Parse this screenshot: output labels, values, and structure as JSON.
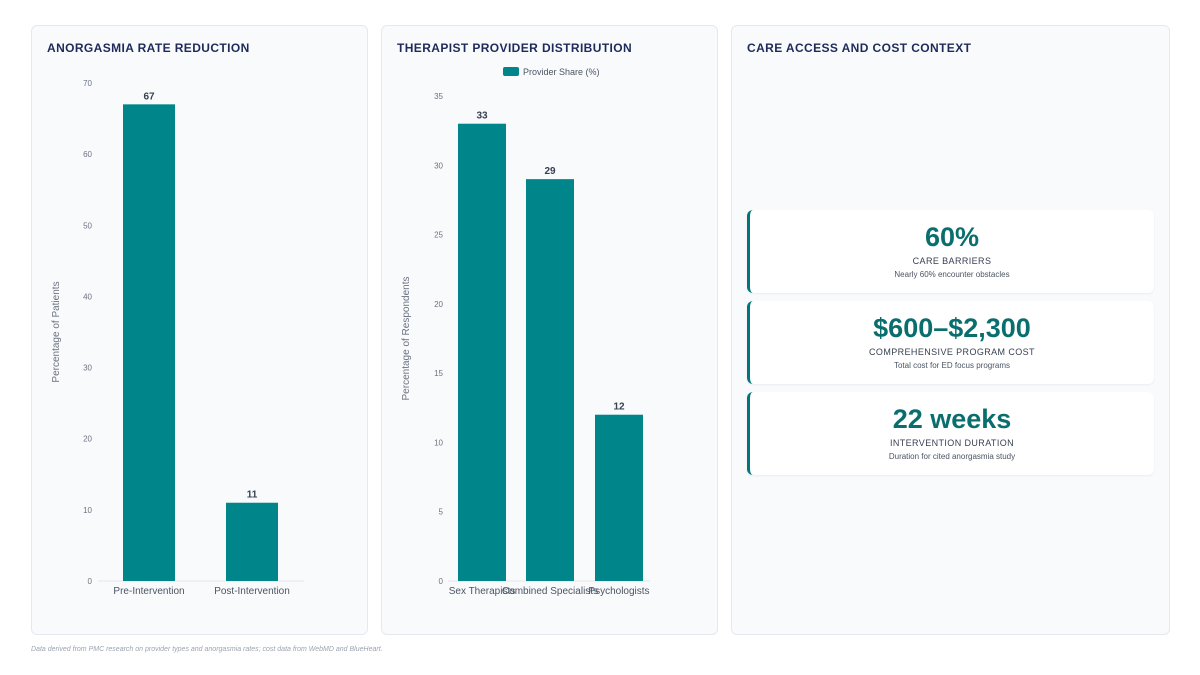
{
  "colors": {
    "bar": "#00858a",
    "accent": "#0b6e6e",
    "title": "#1e2a5a"
  },
  "panels": {
    "chart1_title": "ANORGASMIA RATE REDUCTION",
    "chart2_title": "THERAPIST PROVIDER DISTRIBUTION",
    "context_title": "CARE ACCESS AND COST CONTEXT"
  },
  "chart_data": [
    {
      "type": "bar",
      "title": "ANORGASMIA RATE REDUCTION",
      "categories": [
        "Pre-Intervention",
        "Post-Intervention"
      ],
      "values": [
        67,
        11
      ],
      "ylabel": "Percentage of Patients",
      "xlabel": "",
      "ylim": [
        0,
        70
      ],
      "yticks": [
        0,
        10,
        20,
        30,
        40,
        50,
        60,
        70
      ],
      "grid": false,
      "legend": null
    },
    {
      "type": "bar",
      "title": "THERAPIST PROVIDER DISTRIBUTION",
      "categories": [
        "Sex Therapists",
        "Combined Specialists",
        "Psychologists"
      ],
      "series": [
        {
          "name": "Provider Share (%)",
          "values": [
            33,
            29,
            12
          ]
        }
      ],
      "ylabel": "Percentage of Respondents",
      "xlabel": "",
      "ylim": [
        0,
        35
      ],
      "yticks": [
        0,
        5,
        10,
        15,
        20,
        25,
        30,
        35
      ],
      "grid": false,
      "legend": "top-center"
    }
  ],
  "stats": [
    {
      "value": "60%",
      "label": "CARE BARRIERS",
      "desc": "Nearly 60% encounter obstacles"
    },
    {
      "value": "$600–$2,300",
      "label": "COMPREHENSIVE PROGRAM COST",
      "desc": "Total cost for ED focus programs"
    },
    {
      "value": "22 weeks",
      "label": "INTERVENTION DURATION",
      "desc": "Duration for cited anorgasmia study"
    }
  ],
  "footnote": "Data derived from PMC research on provider types and anorgasmia rates; cost data from WebMD and BlueHeart."
}
